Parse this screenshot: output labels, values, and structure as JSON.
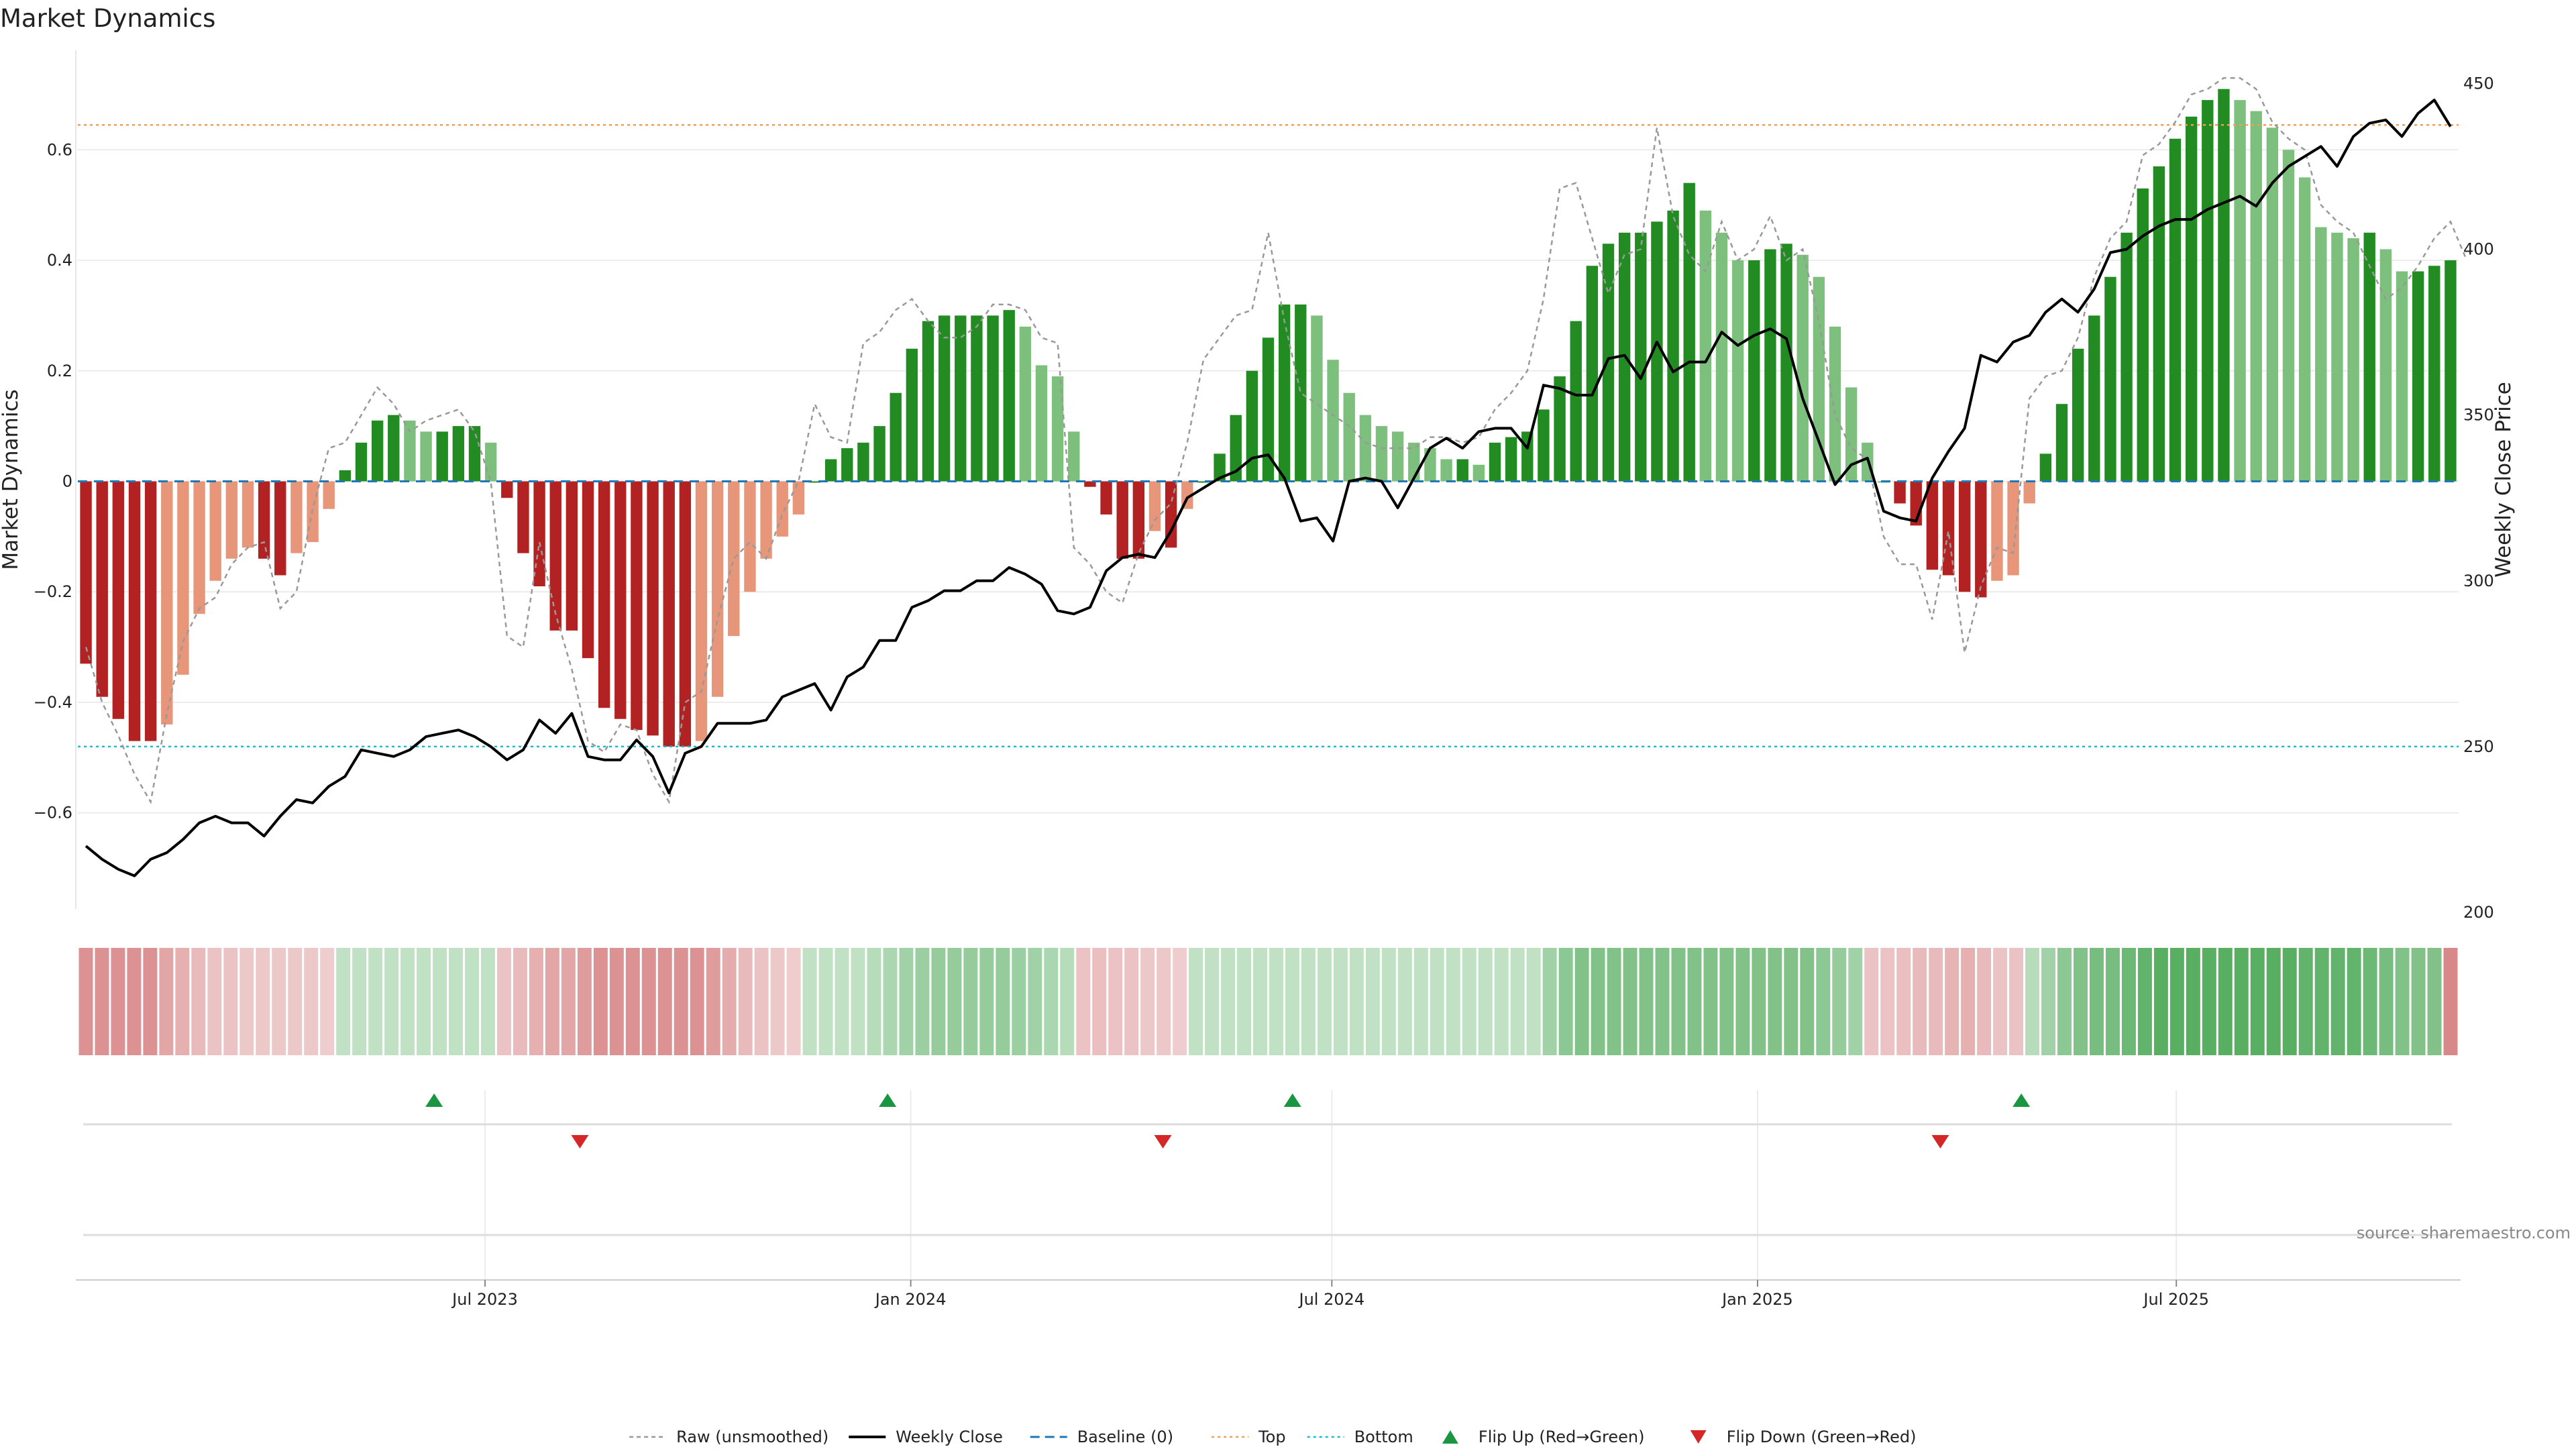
{
  "chart_data": {
    "type": "bar",
    "title": "Market Dynamics",
    "ylabel_left": "Market Dynamics",
    "ylabel_right": "Weekly Close Price",
    "ylim_left": [
      -0.78,
      0.78
    ],
    "ylim_right": [
      200,
      460
    ],
    "yticks_left": [
      {
        "v": 0.6,
        "label": "0.6"
      },
      {
        "v": 0.4,
        "label": "0.4"
      },
      {
        "v": 0.2,
        "label": "0.2"
      },
      {
        "v": 0,
        "label": "0"
      },
      {
        "v": -0.2,
        "label": "−0.2"
      },
      {
        "v": -0.4,
        "label": "−0.4"
      },
      {
        "v": -0.6,
        "label": "−0.6"
      }
    ],
    "yticks_right": [
      {
        "v": 450,
        "label": "450"
      },
      {
        "v": 400,
        "label": "400"
      },
      {
        "v": 350,
        "label": "350"
      },
      {
        "v": 300,
        "label": "300"
      },
      {
        "v": 250,
        "label": "250"
      },
      {
        "v": 200,
        "label": "200"
      }
    ],
    "x_start": "2023-01-06",
    "x_end": "2025-10-31",
    "x_step": "weekly",
    "xticks": [
      {
        "date": "2023-07-01",
        "label": "Jul 2023"
      },
      {
        "date": "2024-01-01",
        "label": "Jan 2024"
      },
      {
        "date": "2024-07-01",
        "label": "Jul 2024"
      },
      {
        "date": "2025-01-01",
        "label": "Jan 2025"
      },
      {
        "date": "2025-07-01",
        "label": "Jul 2025"
      }
    ],
    "top_threshold": 0.645,
    "bottom_threshold": -0.48,
    "grid": true,
    "legend_position": "bottom-center",
    "colors": {
      "strong_red": "#b22222",
      "weak_red": "#e8967a",
      "strong_green": "#228b22",
      "weak_green": "#7dbf7d",
      "weekly_close": "#000000",
      "raw": "#999999",
      "baseline": "#1f77b4",
      "top": "#f0a050",
      "bottom": "#17becf",
      "flip_up": "#1a9641",
      "flip_down": "#d62728"
    },
    "series": [
      {
        "name": "Market Dynamics",
        "values": [
          -0.33,
          -0.39,
          -0.43,
          -0.47,
          -0.47,
          -0.44,
          -0.35,
          -0.24,
          -0.18,
          -0.14,
          -0.12,
          -0.14,
          -0.17,
          -0.13,
          -0.11,
          -0.05,
          0.02,
          0.07,
          0.11,
          0.12,
          0.11,
          0.09,
          0.09,
          0.1,
          0.1,
          0.07,
          -0.03,
          -0.13,
          -0.19,
          -0.27,
          -0.27,
          -0.32,
          -0.41,
          -0.43,
          -0.45,
          -0.46,
          -0.48,
          -0.48,
          -0.47,
          -0.39,
          -0.28,
          -0.2,
          -0.14,
          -0.1,
          -0.06,
          0.0,
          0.04,
          0.06,
          0.07,
          0.1,
          0.16,
          0.24,
          0.29,
          0.3,
          0.3,
          0.3,
          0.3,
          0.31,
          0.28,
          0.21,
          0.19,
          0.09,
          -0.01,
          -0.06,
          -0.14,
          -0.14,
          -0.09,
          -0.12,
          -0.05,
          0.0,
          0.05,
          0.12,
          0.2,
          0.26,
          0.32,
          0.32,
          0.3,
          0.22,
          0.16,
          0.12,
          0.1,
          0.09,
          0.07,
          0.06,
          0.04,
          0.04,
          0.03,
          0.07,
          0.08,
          0.09,
          0.13,
          0.19,
          0.29,
          0.39,
          0.43,
          0.45,
          0.45,
          0.47,
          0.49,
          0.54,
          0.49,
          0.45,
          0.4,
          0.4,
          0.42,
          0.43,
          0.41,
          0.37,
          0.28,
          0.17,
          0.07,
          0.0,
          -0.04,
          -0.08,
          -0.16,
          -0.17,
          -0.2,
          -0.21,
          -0.18,
          -0.17,
          -0.04,
          0.05,
          0.14,
          0.24,
          0.3,
          0.37,
          0.45,
          0.53,
          0.57,
          0.62,
          0.66,
          0.69,
          0.71,
          0.69,
          0.67,
          0.64,
          0.6,
          0.55,
          0.46,
          0.45,
          0.44,
          0.45,
          0.42,
          0.38,
          0.38,
          0.39,
          0.4
        ]
      },
      {
        "name": "Weekly Close",
        "values": [
          220,
          216,
          213,
          211,
          216,
          218,
          222,
          227,
          229,
          227,
          227,
          223,
          229,
          234,
          233,
          238,
          241,
          249,
          248,
          247,
          249,
          253,
          254,
          255,
          253,
          250,
          246,
          249,
          258,
          254,
          260,
          247,
          246,
          246,
          252,
          247,
          236,
          248,
          250,
          257,
          257,
          257,
          258,
          265,
          267,
          269,
          261,
          271,
          274,
          282,
          282,
          292,
          294,
          297,
          297,
          300,
          300,
          304,
          302,
          299,
          291,
          290,
          292,
          303,
          307,
          308,
          307,
          315,
          325,
          328,
          331,
          333,
          337,
          338,
          331,
          318,
          319,
          312,
          330,
          331,
          330,
          322,
          331,
          340,
          343,
          340,
          345,
          346,
          346,
          340,
          359,
          358,
          356,
          356,
          367,
          368,
          361,
          372,
          363,
          366,
          366,
          375,
          371,
          374,
          376,
          373,
          355,
          342,
          329,
          335,
          337,
          321,
          319,
          318,
          331,
          339,
          346,
          368,
          366,
          372,
          374,
          381,
          385,
          381,
          388,
          399,
          400,
          404,
          407,
          409,
          409,
          412,
          414,
          416,
          413,
          420,
          425,
          428,
          431,
          425,
          434,
          438,
          439,
          434,
          441,
          445,
          437
        ]
      },
      {
        "name": "Raw (unsmoothed)",
        "values": [
          -0.3,
          -0.4,
          -0.46,
          -0.53,
          -0.58,
          -0.42,
          -0.29,
          -0.23,
          -0.21,
          -0.15,
          -0.12,
          -0.11,
          -0.23,
          -0.2,
          -0.05,
          0.06,
          0.07,
          0.12,
          0.17,
          0.14,
          0.09,
          0.11,
          0.12,
          0.13,
          0.09,
          0.0,
          -0.28,
          -0.3,
          -0.11,
          -0.24,
          -0.34,
          -0.47,
          -0.49,
          -0.44,
          -0.45,
          -0.53,
          -0.58,
          -0.4,
          -0.38,
          -0.25,
          -0.14,
          -0.11,
          -0.14,
          -0.06,
          0.0,
          0.14,
          0.08,
          0.07,
          0.25,
          0.27,
          0.31,
          0.33,
          0.29,
          0.26,
          0.26,
          0.28,
          0.32,
          0.32,
          0.31,
          0.26,
          0.25,
          -0.12,
          -0.15,
          -0.2,
          -0.22,
          -0.13,
          -0.07,
          -0.04,
          0.07,
          0.22,
          0.26,
          0.3,
          0.31,
          0.45,
          0.29,
          0.16,
          0.14,
          0.12,
          0.1,
          0.07,
          0.06,
          0.06,
          0.06,
          0.08,
          0.08,
          0.07,
          0.08,
          0.13,
          0.16,
          0.2,
          0.33,
          0.53,
          0.54,
          0.44,
          0.34,
          0.41,
          0.42,
          0.64,
          0.48,
          0.41,
          0.38,
          0.47,
          0.4,
          0.42,
          0.48,
          0.4,
          0.42,
          0.29,
          0.12,
          0.06,
          0.04,
          -0.1,
          -0.15,
          -0.15,
          -0.25,
          -0.09,
          -0.31,
          -0.19,
          -0.12,
          -0.13,
          0.15,
          0.19,
          0.2,
          0.26,
          0.37,
          0.44,
          0.47,
          0.59,
          0.61,
          0.65,
          0.7,
          0.71,
          0.73,
          0.73,
          0.71,
          0.65,
          0.62,
          0.6,
          0.5,
          0.47,
          0.45,
          0.39,
          0.33,
          0.35,
          0.39,
          0.44,
          0.47,
          0.4
        ]
      }
    ],
    "heat_strip_alphas": [
      0.55,
      0.55,
      0.55,
      0.55,
      0.55,
      0.45,
      0.4,
      0.35,
      0.3,
      0.3,
      0.28,
      0.28,
      0.28,
      0.28,
      0.28,
      0.25,
      0.3,
      0.3,
      0.3,
      0.3,
      0.3,
      0.3,
      0.3,
      0.3,
      0.3,
      0.3,
      0.3,
      0.35,
      0.4,
      0.45,
      0.45,
      0.5,
      0.55,
      0.55,
      0.55,
      0.55,
      0.55,
      0.55,
      0.55,
      0.5,
      0.42,
      0.35,
      0.3,
      0.28,
      0.25,
      0.3,
      0.3,
      0.3,
      0.3,
      0.35,
      0.4,
      0.45,
      0.48,
      0.5,
      0.5,
      0.5,
      0.5,
      0.5,
      0.48,
      0.45,
      0.4,
      0.35,
      0.3,
      0.32,
      0.3,
      0.3,
      0.28,
      0.28,
      0.25,
      0.3,
      0.3,
      0.3,
      0.3,
      0.3,
      0.3,
      0.3,
      0.3,
      0.3,
      0.3,
      0.3,
      0.3,
      0.3,
      0.3,
      0.3,
      0.3,
      0.3,
      0.3,
      0.3,
      0.3,
      0.3,
      0.3,
      0.45,
      0.55,
      0.6,
      0.6,
      0.6,
      0.6,
      0.6,
      0.6,
      0.6,
      0.6,
      0.6,
      0.6,
      0.6,
      0.6,
      0.6,
      0.6,
      0.6,
      0.55,
      0.5,
      0.45,
      0.3,
      0.3,
      0.32,
      0.35,
      0.35,
      0.38,
      0.4,
      0.35,
      0.3,
      0.3,
      0.35,
      0.45,
      0.55,
      0.6,
      0.65,
      0.65,
      0.7,
      0.75,
      0.8,
      0.8,
      0.8,
      0.8,
      0.8,
      0.8,
      0.8,
      0.8,
      0.8,
      0.75,
      0.75,
      0.75,
      0.75,
      0.7,
      0.65,
      0.6,
      0.6,
      0.6,
      0.6
    ],
    "flips_up": [
      "2023-06-09",
      "2023-12-22",
      "2024-06-14",
      "2025-04-25"
    ],
    "flips_down": [
      "2023-08-11",
      "2024-04-19",
      "2025-03-21"
    ],
    "legend": [
      {
        "kind": "raw",
        "label": "Raw (unsmoothed)"
      },
      {
        "kind": "close",
        "label": "Weekly Close"
      },
      {
        "kind": "baseline",
        "label": "Baseline (0)"
      },
      {
        "kind": "top",
        "label": "Top"
      },
      {
        "kind": "bottom",
        "label": "Bottom"
      },
      {
        "kind": "flipup",
        "label": "Flip Up (Red→Green)"
      },
      {
        "kind": "flipdown",
        "label": "Flip Down (Green→Red)"
      }
    ],
    "source": "source: sharemaestro.com"
  }
}
